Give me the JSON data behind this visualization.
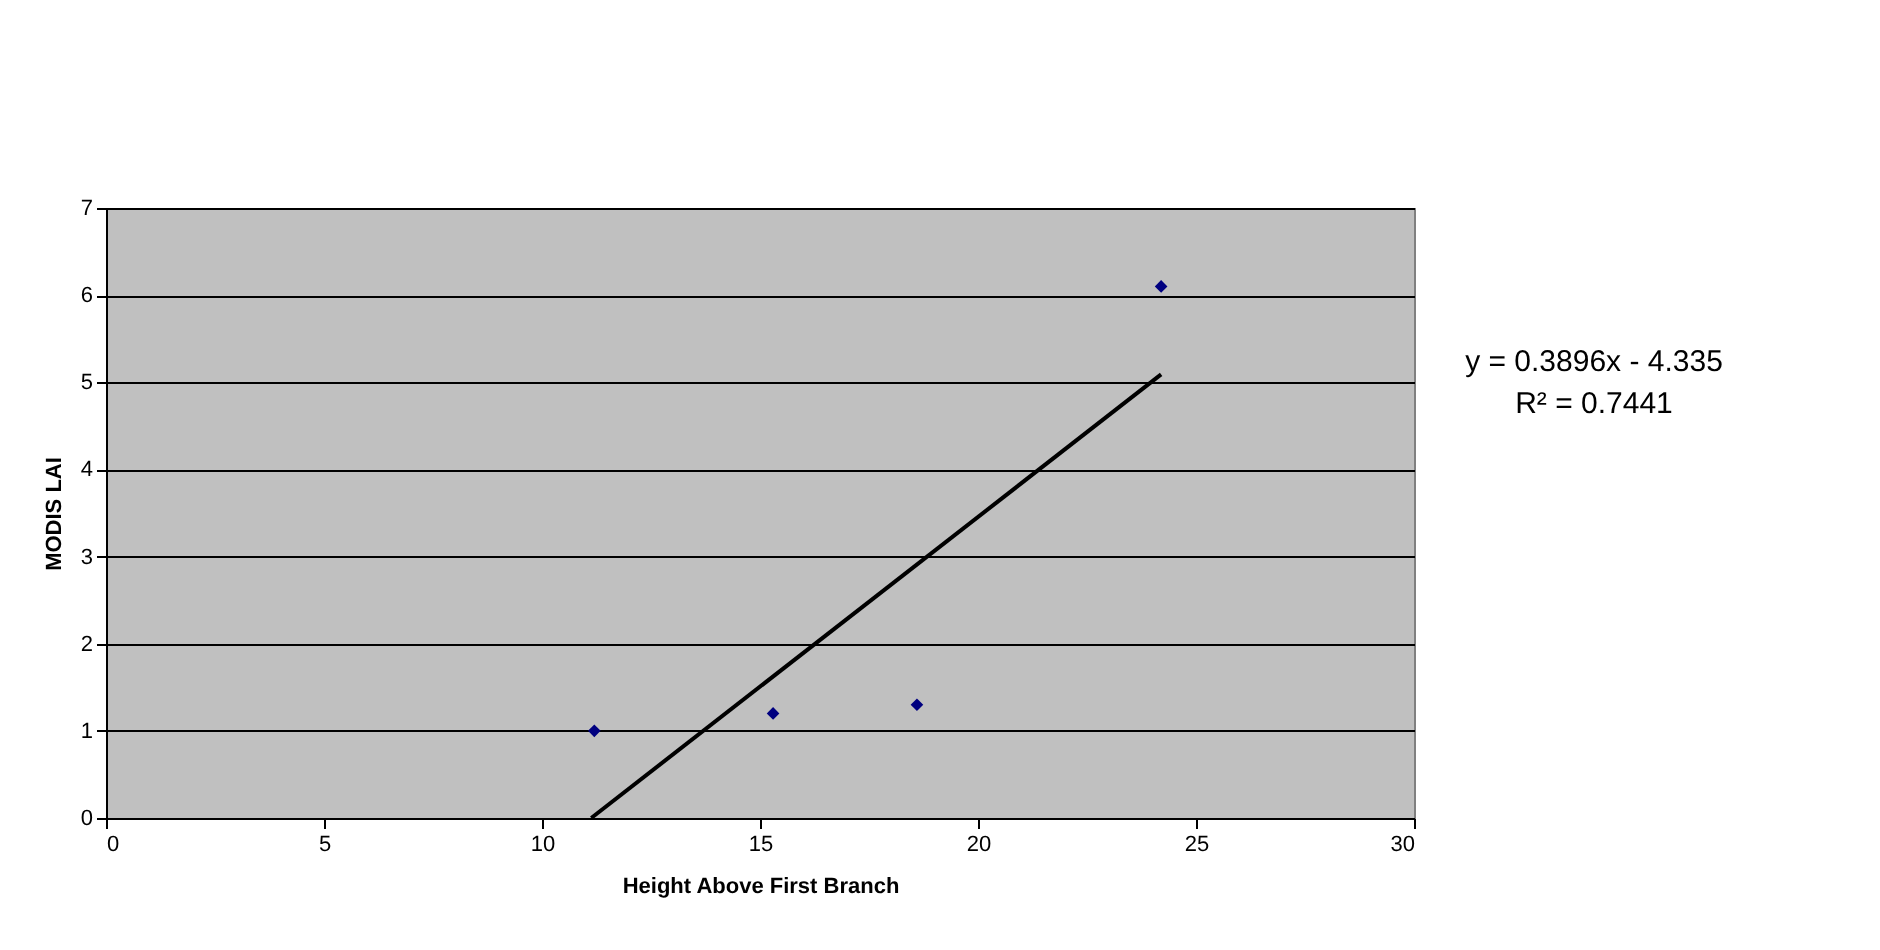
{
  "chart_data": {
    "type": "scatter",
    "xlabel": "Height Above First Branch",
    "ylabel": "MODIS LAI",
    "xlim": [
      0,
      30
    ],
    "ylim": [
      0,
      7
    ],
    "xticks": [
      0,
      5,
      10,
      15,
      20,
      25,
      30
    ],
    "yticks": [
      0,
      1,
      2,
      3,
      4,
      5,
      6,
      7
    ],
    "grid": "y",
    "legend": false,
    "marker": "diamond",
    "series": [
      {
        "color": "#000080",
        "x": [
          11.2,
          15.3,
          18.6,
          24.2
        ],
        "values": [
          1.0,
          1.2,
          1.3,
          6.1
        ]
      },
      {
        "type": "line",
        "color": "#000000",
        "x": [
          11.13,
          24.2
        ],
        "values": [
          0,
          5.09
        ],
        "marker": "none",
        "line_style": "solid"
      }
    ],
    "annotations": [
      "y = 0.3896x - 4.335",
      "R² = 0.7441"
    ]
  }
}
